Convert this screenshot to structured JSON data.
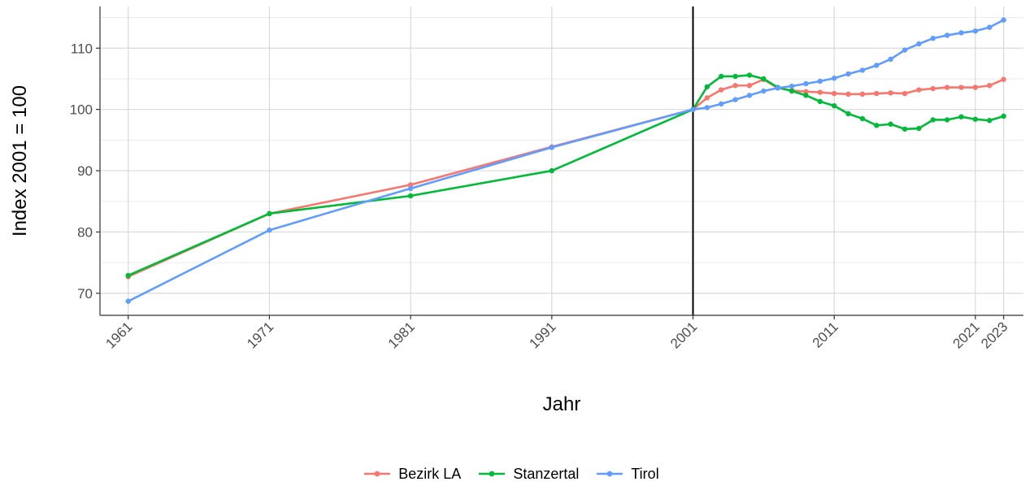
{
  "chart_data": {
    "type": "line",
    "xlabel": "Jahr",
    "ylabel": "Index 2001 = 100",
    "xlim": [
      1959,
      2024.4
    ],
    "ylim": [
      66.4,
      116.8
    ],
    "x_ticks": [
      1961,
      1971,
      1981,
      1991,
      2001,
      2011,
      2021,
      2023
    ],
    "y_ticks": [
      70,
      80,
      90,
      100,
      110
    ],
    "reference_line_x": 2001,
    "grid": true,
    "legend_position": "bottom",
    "series": [
      {
        "name": "Bezirk LA",
        "color": "#F8766D",
        "points": [
          [
            1961,
            72.7
          ],
          [
            1971,
            83.0
          ],
          [
            1981,
            87.7
          ],
          [
            1991,
            93.9
          ],
          [
            2001,
            100.0
          ],
          [
            2002,
            101.9
          ],
          [
            2003,
            103.2
          ],
          [
            2004,
            103.9
          ],
          [
            2005,
            103.9
          ],
          [
            2006,
            104.9
          ],
          [
            2007,
            103.5
          ],
          [
            2008,
            103.1
          ],
          [
            2009,
            102.9
          ],
          [
            2010,
            102.8
          ],
          [
            2011,
            102.6
          ],
          [
            2012,
            102.5
          ],
          [
            2013,
            102.5
          ],
          [
            2014,
            102.6
          ],
          [
            2015,
            102.7
          ],
          [
            2016,
            102.6
          ],
          [
            2017,
            103.2
          ],
          [
            2018,
            103.4
          ],
          [
            2019,
            103.6
          ],
          [
            2020,
            103.6
          ],
          [
            2021,
            103.6
          ],
          [
            2022,
            103.9
          ],
          [
            2023,
            104.9
          ]
        ]
      },
      {
        "name": "Stanzertal",
        "color": "#00BA38",
        "points": [
          [
            1961,
            72.9
          ],
          [
            1971,
            83.0
          ],
          [
            1981,
            85.9
          ],
          [
            1991,
            90.0
          ],
          [
            2001,
            100.0
          ],
          [
            2002,
            103.7
          ],
          [
            2003,
            105.4
          ],
          [
            2004,
            105.4
          ],
          [
            2005,
            105.6
          ],
          [
            2006,
            105.0
          ],
          [
            2007,
            103.6
          ],
          [
            2008,
            103.0
          ],
          [
            2009,
            102.3
          ],
          [
            2010,
            101.3
          ],
          [
            2011,
            100.6
          ],
          [
            2012,
            99.3
          ],
          [
            2013,
            98.5
          ],
          [
            2014,
            97.4
          ],
          [
            2015,
            97.6
          ],
          [
            2016,
            96.8
          ],
          [
            2017,
            96.9
          ],
          [
            2018,
            98.3
          ],
          [
            2019,
            98.3
          ],
          [
            2020,
            98.8
          ],
          [
            2021,
            98.4
          ],
          [
            2022,
            98.2
          ],
          [
            2023,
            98.9
          ]
        ]
      },
      {
        "name": "Tirol",
        "color": "#619CFF",
        "points": [
          [
            1961,
            68.7
          ],
          [
            1971,
            80.3
          ],
          [
            1981,
            87.1
          ],
          [
            1991,
            93.8
          ],
          [
            2001,
            100.0
          ],
          [
            2002,
            100.3
          ],
          [
            2003,
            100.9
          ],
          [
            2004,
            101.6
          ],
          [
            2005,
            102.3
          ],
          [
            2006,
            103.0
          ],
          [
            2007,
            103.5
          ],
          [
            2008,
            103.8
          ],
          [
            2009,
            104.2
          ],
          [
            2010,
            104.6
          ],
          [
            2011,
            105.1
          ],
          [
            2012,
            105.8
          ],
          [
            2013,
            106.4
          ],
          [
            2014,
            107.2
          ],
          [
            2015,
            108.2
          ],
          [
            2016,
            109.7
          ],
          [
            2017,
            110.7
          ],
          [
            2018,
            111.6
          ],
          [
            2019,
            112.1
          ],
          [
            2020,
            112.5
          ],
          [
            2021,
            112.8
          ],
          [
            2022,
            113.4
          ],
          [
            2023,
            114.6
          ]
        ]
      }
    ]
  }
}
